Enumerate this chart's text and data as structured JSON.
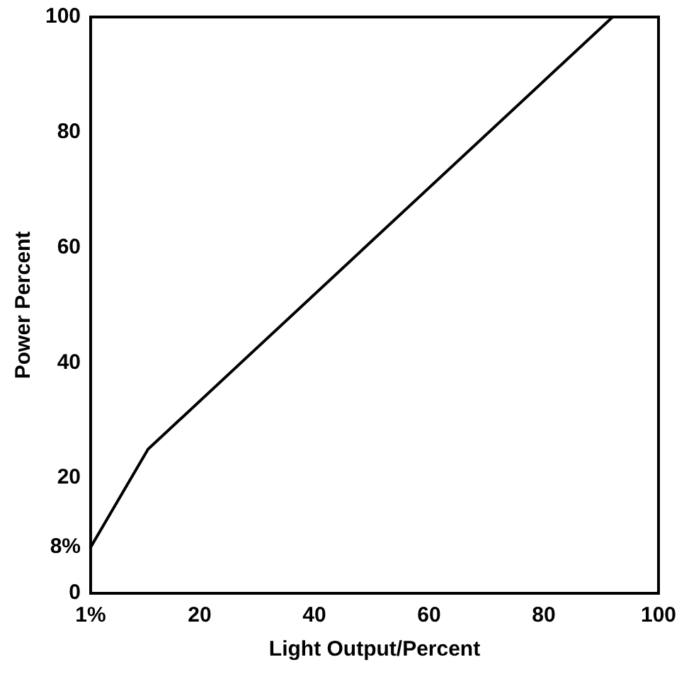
{
  "chart_data": {
    "type": "line",
    "xlabel": "Light Output/Percent",
    "ylabel": "Power Percent",
    "x": [
      1,
      11,
      92
    ],
    "series": [
      {
        "color": "#000000",
        "values": [
          8,
          25,
          100
        ]
      }
    ],
    "xlim": [
      1,
      100
    ],
    "xticks": [
      {
        "value": 1,
        "label": "1%"
      },
      20,
      40,
      60,
      80,
      100
    ],
    "ylim": [
      0,
      100
    ],
    "yticks": [
      0,
      {
        "value": 8,
        "label": "8%"
      },
      20,
      40,
      60,
      80,
      100
    ],
    "grid": false,
    "legend": false,
    "marker": "none",
    "line_style": "solid"
  }
}
